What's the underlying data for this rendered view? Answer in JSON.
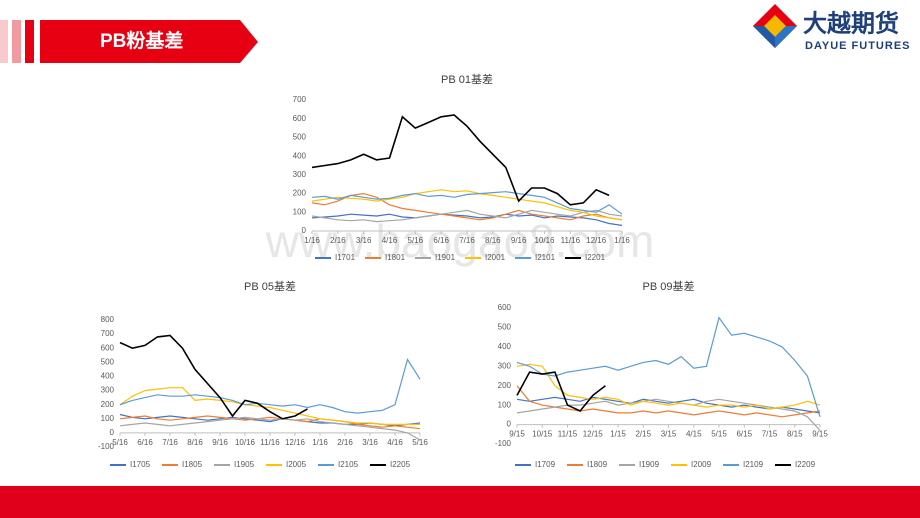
{
  "header": {
    "title": "PB粉基差"
  },
  "logo": {
    "name": "大越期货",
    "subtitle": "DAYUE FUTURES"
  },
  "watermark": "www.baogao8.com",
  "chart_data": [
    {
      "type": "line",
      "title": "PB 01基差",
      "x": [
        0,
        0.5,
        1,
        1.5,
        2,
        2.5,
        3,
        3.5,
        4,
        4.5,
        5,
        5.5,
        6,
        6.5,
        7,
        7.5,
        8,
        8.5,
        9,
        9.5,
        10,
        10.5,
        11,
        11.5,
        12
      ],
      "xlim": [
        0,
        12
      ],
      "xticks": [
        {
          "value": 0,
          "label": "1/16"
        },
        {
          "value": 1,
          "label": "2/16"
        },
        {
          "value": 2,
          "label": "3/16"
        },
        {
          "value": 3,
          "label": "4/16"
        },
        {
          "value": 4,
          "label": "5/16"
        },
        {
          "value": 5,
          "label": "6/16"
        },
        {
          "value": 6,
          "label": "7/16"
        },
        {
          "value": 7,
          "label": "8/16"
        },
        {
          "value": 8,
          "label": "9/16"
        },
        {
          "value": 9,
          "label": "10/16"
        },
        {
          "value": 10,
          "label": "11/16"
        },
        {
          "value": 11,
          "label": "12/16"
        },
        {
          "value": 12,
          "label": "1/16"
        }
      ],
      "ylim": [
        0,
        700
      ],
      "yticks": [
        0,
        100,
        200,
        300,
        400,
        500,
        600,
        700
      ],
      "series": [
        {
          "name": "I1701",
          "color": "#4472c4",
          "values": [
            70,
            75,
            80,
            90,
            85,
            80,
            90,
            75,
            70,
            80,
            90,
            85,
            80,
            70,
            75,
            90,
            80,
            85,
            70,
            80,
            75,
            70,
            60,
            40,
            30
          ]
        },
        {
          "name": "I1801",
          "color": "#ed7d31",
          "values": [
            150,
            140,
            160,
            190,
            200,
            180,
            140,
            120,
            110,
            100,
            90,
            80,
            70,
            60,
            70,
            90,
            110,
            90,
            80,
            70,
            60,
            80,
            90,
            70,
            60
          ]
        },
        {
          "name": "I1901",
          "color": "#a5a5a5",
          "values": [
            80,
            70,
            60,
            55,
            60,
            50,
            55,
            60,
            70,
            80,
            90,
            100,
            110,
            90,
            80,
            70,
            90,
            110,
            100,
            90,
            80,
            100,
            110,
            90,
            80
          ]
        },
        {
          "name": "I2001",
          "color": "#ffc000",
          "values": [
            160,
            170,
            180,
            175,
            170,
            160,
            170,
            180,
            200,
            210,
            220,
            210,
            215,
            200,
            190,
            180,
            170,
            160,
            150,
            130,
            110,
            100,
            80,
            70,
            60
          ]
        },
        {
          "name": "I2101",
          "color": "#5b9bd5",
          "values": [
            180,
            185,
            170,
            190,
            180,
            170,
            175,
            190,
            200,
            185,
            190,
            180,
            195,
            200,
            205,
            210,
            200,
            190,
            180,
            150,
            120,
            110,
            100,
            140,
            90
          ]
        },
        {
          "name": "I2201",
          "color": "#000000",
          "values": [
            340,
            350,
            360,
            380,
            410,
            380,
            390,
            610,
            550,
            580,
            610,
            620,
            560,
            480,
            410,
            340,
            160,
            230,
            230,
            200,
            140,
            150,
            220,
            190,
            null
          ]
        }
      ]
    },
    {
      "type": "line",
      "title": "PB 05基差",
      "x": [
        0,
        0.5,
        1,
        1.5,
        2,
        2.5,
        3,
        3.5,
        4,
        4.5,
        5,
        5.5,
        6,
        6.5,
        7,
        7.5,
        8,
        8.5,
        9,
        9.5,
        10,
        10.5,
        11,
        11.5,
        12
      ],
      "xlim": [
        0,
        12
      ],
      "xticks": [
        {
          "value": 0,
          "label": "5/16"
        },
        {
          "value": 1,
          "label": "6/16"
        },
        {
          "value": 2,
          "label": "7/16"
        },
        {
          "value": 3,
          "label": "8/16"
        },
        {
          "value": 4,
          "label": "9/16"
        },
        {
          "value": 5,
          "label": "10/16"
        },
        {
          "value": 6,
          "label": "11/16"
        },
        {
          "value": 7,
          "label": "12/16"
        },
        {
          "value": 8,
          "label": "1/16"
        },
        {
          "value": 9,
          "label": "2/16"
        },
        {
          "value": 10,
          "label": "3/16"
        },
        {
          "value": 11,
          "label": "4/16"
        },
        {
          "value": 12,
          "label": "5/16"
        }
      ],
      "ylim": [
        -100,
        800
      ],
      "yticks": [
        -100,
        0,
        100,
        200,
        300,
        400,
        500,
        600,
        700,
        800
      ],
      "series": [
        {
          "name": "I1705",
          "color": "#4472c4",
          "values": [
            130,
            110,
            100,
            110,
            120,
            110,
            100,
            90,
            100,
            110,
            100,
            90,
            80,
            100,
            90,
            80,
            70,
            70,
            60,
            60,
            70,
            60,
            50,
            60,
            70
          ]
        },
        {
          "name": "I1805",
          "color": "#ed7d31",
          "values": [
            100,
            110,
            120,
            100,
            90,
            100,
            110,
            120,
            110,
            100,
            90,
            100,
            110,
            100,
            90,
            80,
            100,
            90,
            80,
            60,
            50,
            40,
            50,
            40,
            30
          ]
        },
        {
          "name": "I1905",
          "color": "#a5a5a5",
          "values": [
            50,
            60,
            70,
            60,
            50,
            60,
            70,
            80,
            90,
            100,
            110,
            100,
            90,
            100,
            90,
            100,
            80,
            70,
            60,
            50,
            40,
            30,
            20,
            0,
            -50
          ]
        },
        {
          "name": "I2005",
          "color": "#ffc000",
          "values": [
            200,
            260,
            300,
            310,
            320,
            320,
            230,
            240,
            230,
            220,
            200,
            190,
            180,
            160,
            140,
            120,
            100,
            90,
            80,
            70,
            70,
            60,
            60,
            60,
            60
          ]
        },
        {
          "name": "I2105",
          "color": "#5b9bd5",
          "values": [
            200,
            230,
            250,
            270,
            260,
            260,
            270,
            260,
            250,
            230,
            200,
            210,
            200,
            190,
            200,
            180,
            200,
            180,
            150,
            140,
            150,
            160,
            200,
            520,
            380
          ]
        },
        {
          "name": "I2205",
          "color": "#000000",
          "values": [
            640,
            600,
            620,
            680,
            690,
            600,
            450,
            350,
            250,
            120,
            230,
            210,
            150,
            100,
            120,
            170,
            null,
            null,
            null,
            null,
            null,
            null,
            null,
            null,
            null
          ]
        }
      ]
    },
    {
      "type": "line",
      "title": "PB 09基差",
      "x": [
        0,
        0.5,
        1,
        1.5,
        2,
        2.5,
        3,
        3.5,
        4,
        4.5,
        5,
        5.5,
        6,
        6.5,
        7,
        7.5,
        8,
        8.5,
        9,
        9.5,
        10,
        10.5,
        11,
        11.5,
        12
      ],
      "xlim": [
        0,
        12
      ],
      "xticks": [
        {
          "value": 0,
          "label": "9/15"
        },
        {
          "value": 1,
          "label": "10/15"
        },
        {
          "value": 2,
          "label": "11/15"
        },
        {
          "value": 3,
          "label": "12/15"
        },
        {
          "value": 4,
          "label": "1/15"
        },
        {
          "value": 5,
          "label": "2/15"
        },
        {
          "value": 6,
          "label": "3/15"
        },
        {
          "value": 7,
          "label": "4/15"
        },
        {
          "value": 8,
          "label": "5/15"
        },
        {
          "value": 9,
          "label": "6/15"
        },
        {
          "value": 10,
          "label": "7/15"
        },
        {
          "value": 11,
          "label": "8/15"
        },
        {
          "value": 12,
          "label": "9/15"
        }
      ],
      "ylim": [
        -100,
        600
      ],
      "yticks": [
        -100,
        0,
        100,
        200,
        300,
        400,
        500,
        600
      ],
      "series": [
        {
          "name": "I1709",
          "color": "#4472c4",
          "values": [
            130,
            120,
            130,
            140,
            130,
            120,
            140,
            130,
            120,
            110,
            130,
            120,
            110,
            120,
            130,
            110,
            100,
            90,
            100,
            90,
            80,
            90,
            80,
            70,
            60
          ]
        },
        {
          "name": "I1809",
          "color": "#ed7d31",
          "values": [
            200,
            120,
            100,
            90,
            80,
            70,
            80,
            70,
            60,
            60,
            70,
            60,
            70,
            60,
            50,
            60,
            70,
            60,
            50,
            60,
            50,
            40,
            50,
            60,
            70
          ]
        },
        {
          "name": "I1909",
          "color": "#a5a5a5",
          "values": [
            60,
            70,
            80,
            90,
            100,
            100,
            110,
            120,
            100,
            110,
            120,
            130,
            120,
            110,
            100,
            120,
            130,
            120,
            110,
            100,
            90,
            80,
            70,
            40,
            -30
          ]
        },
        {
          "name": "I2009",
          "color": "#ffc000",
          "values": [
            300,
            310,
            300,
            200,
            150,
            140,
            130,
            140,
            130,
            100,
            120,
            110,
            100,
            110,
            100,
            90,
            100,
            100,
            90,
            100,
            80,
            90,
            100,
            120,
            100
          ]
        },
        {
          "name": "I2109",
          "color": "#5b9bd5",
          "values": [
            320,
            300,
            260,
            250,
            270,
            280,
            290,
            300,
            280,
            300,
            320,
            330,
            310,
            350,
            290,
            300,
            550,
            460,
            470,
            450,
            430,
            400,
            330,
            250,
            40
          ]
        },
        {
          "name": "I2209",
          "color": "#000000",
          "values": [
            150,
            270,
            260,
            270,
            100,
            70,
            150,
            200,
            null,
            null,
            null,
            null,
            null,
            null,
            null,
            null,
            null,
            null,
            null,
            null,
            null,
            null,
            null,
            null,
            null
          ]
        }
      ]
    }
  ]
}
